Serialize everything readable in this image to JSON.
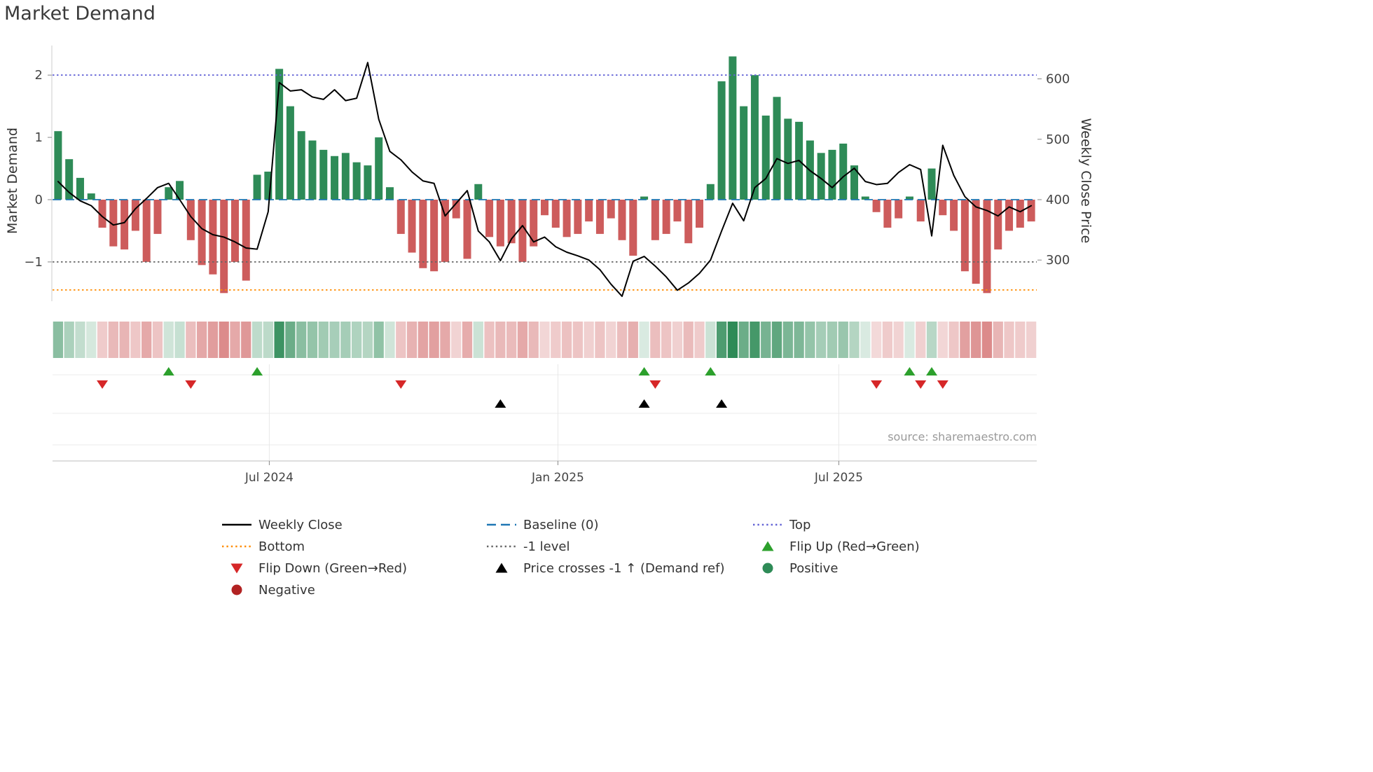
{
  "title": "Market Demand",
  "source": "source: sharemaestro.com",
  "chart_data": {
    "type": "combo",
    "description": "Weekly market-demand oscillator bars with weekly close price line, demand heatmap strip and event markers",
    "demand_axis": {
      "label": "Market Demand",
      "ticks": [
        {
          "label": "2",
          "value": 2
        },
        {
          "label": "1",
          "value": 1
        },
        {
          "label": "0",
          "value": 0
        },
        {
          "label": "−1",
          "value": -1
        }
      ],
      "range": [
        -1.65,
        2.47
      ]
    },
    "price_axis": {
      "label": "Weekly Close Price",
      "ticks": [
        {
          "label": "600",
          "value": 600
        },
        {
          "label": "500",
          "value": 500
        },
        {
          "label": "400",
          "value": 400
        },
        {
          "label": "300",
          "value": 300
        }
      ],
      "range": [
        232,
        655
      ]
    },
    "x_ticks": [
      {
        "label": "Jul 2024",
        "index": 19.6
      },
      {
        "label": "Jan 2025",
        "index": 45.7
      },
      {
        "label": "Jul 2025",
        "index": 71.1
      }
    ],
    "reference_lines": [
      {
        "name": "Top",
        "value": 2,
        "style": "dotted",
        "color": "#6363d6"
      },
      {
        "name": "Baseline (0)",
        "value": 0,
        "style": "dashed",
        "color": "#1f77b4"
      },
      {
        "name": "-1 level",
        "value": -1,
        "style": "dotted",
        "color": "#666666"
      },
      {
        "name": "Bottom",
        "value": -1.45,
        "style": "dotted",
        "color": "#ff8c00"
      }
    ],
    "bar_colors": {
      "positive": "#2e8b57",
      "negative": "#cd5c5c"
    },
    "demand_bars": [
      1.1,
      0.65,
      0.35,
      0.1,
      -0.45,
      -0.75,
      -0.8,
      -0.5,
      -1.0,
      -0.55,
      0.2,
      0.3,
      -0.65,
      -1.05,
      -1.2,
      -1.5,
      -1.0,
      -1.3,
      0.4,
      0.45,
      2.1,
      1.5,
      1.1,
      0.95,
      0.8,
      0.7,
      0.75,
      0.6,
      0.55,
      1.0,
      0.2,
      -0.55,
      -0.85,
      -1.1,
      -1.15,
      -1.0,
      -0.3,
      -0.95,
      0.25,
      -0.6,
      -0.75,
      -0.7,
      -1.0,
      -0.75,
      -0.25,
      -0.45,
      -0.6,
      -0.55,
      -0.35,
      -0.55,
      -0.3,
      -0.65,
      -0.9,
      0.05,
      -0.65,
      -0.55,
      -0.35,
      -0.7,
      -0.45,
      0.25,
      1.9,
      2.3,
      1.5,
      2.0,
      1.35,
      1.65,
      1.3,
      1.25,
      0.95,
      0.75,
      0.8,
      0.9,
      0.55,
      0.05,
      -0.2,
      -0.45,
      -0.3,
      0.05,
      -0.35,
      0.5,
      -0.25,
      -0.5,
      -1.15,
      -1.35,
      -1.5,
      -0.8,
      -0.5,
      -0.45,
      -0.35
    ],
    "weekly_close": [
      430,
      412,
      398,
      390,
      372,
      358,
      362,
      385,
      402,
      420,
      427,
      400,
      372,
      352,
      342,
      338,
      330,
      320,
      318,
      380,
      594,
      580,
      582,
      570,
      566,
      582,
      564,
      568,
      627,
      533,
      480,
      466,
      446,
      431,
      427,
      373,
      394,
      415,
      348,
      330,
      299,
      335,
      357,
      330,
      338,
      322,
      313,
      307,
      300,
      284,
      260,
      240,
      298,
      306,
      290,
      272,
      250,
      262,
      278,
      300,
      348,
      394,
      365,
      420,
      435,
      468,
      460,
      465,
      448,
      435,
      420,
      438,
      452,
      430,
      425,
      427,
      445,
      458,
      450,
      340,
      490,
      440,
      405,
      388,
      382,
      373,
      388,
      380,
      390
    ],
    "markers": {
      "flip_up": {
        "label": "Flip Up (Red→Green)",
        "color": "#2ca02c",
        "indices": [
          10,
          18,
          53,
          59,
          77,
          79
        ]
      },
      "flip_down": {
        "label": "Flip Down (Green→Red)",
        "color": "#d62728",
        "indices": [
          4,
          12,
          31,
          54,
          74,
          78,
          80
        ]
      },
      "price_cross": {
        "label": "Price crosses -1 ↑ (Demand ref)",
        "color": "#000000",
        "indices": [
          40,
          53,
          60
        ]
      }
    },
    "heatmap": {
      "note": "cell color mirrors demand_bars sign, opacity scales with magnitude",
      "positive_rgb": "46,139,87",
      "negative_rgb": "205,92,92"
    }
  },
  "legend": {
    "columns": [
      {
        "x": 315,
        "items": [
          {
            "name": "weekly-close",
            "label": "Weekly Close",
            "swatch": "line",
            "color": "#000000"
          },
          {
            "name": "bottom",
            "label": "Bottom",
            "swatch": "dotted",
            "color": "#ff8c00"
          },
          {
            "name": "flip-down",
            "label": "Flip Down (Green→Red)",
            "swatch": "triangle-down",
            "color": "#d62728"
          },
          {
            "name": "negative",
            "label": "Negative",
            "swatch": "circle",
            "color": "#b22222"
          }
        ]
      },
      {
        "x": 693,
        "items": [
          {
            "name": "baseline",
            "label": "Baseline (0)",
            "swatch": "dashed",
            "color": "#1f77b4"
          },
          {
            "name": "minus-1-level",
            "label": "-1 level",
            "swatch": "dotted",
            "color": "#666666"
          },
          {
            "name": "price-crosses",
            "label": "Price crosses -1 ↑ (Demand ref)",
            "swatch": "triangle-up",
            "color": "#000000"
          }
        ]
      },
      {
        "x": 1073,
        "items": [
          {
            "name": "top",
            "label": "Top",
            "swatch": "dotted",
            "color": "#6363d6"
          },
          {
            "name": "flip-up",
            "label": "Flip Up (Red→Green)",
            "swatch": "triangle-up",
            "color": "#2ca02c"
          },
          {
            "name": "positive",
            "label": "Positive",
            "swatch": "circle",
            "color": "#2e8b57"
          }
        ]
      }
    ]
  }
}
